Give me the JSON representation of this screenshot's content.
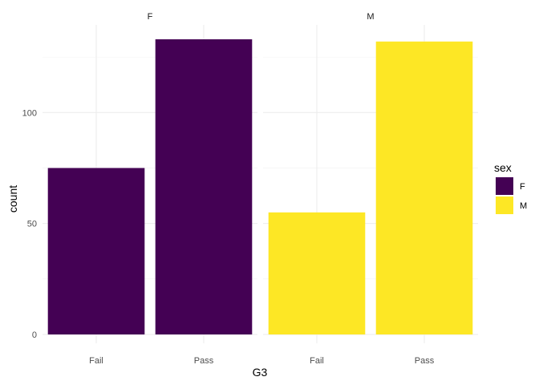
{
  "chart_data": {
    "type": "bar",
    "facet_by": "sex",
    "facets": [
      {
        "label": "F",
        "categories": [
          "Fail",
          "Pass"
        ],
        "values": [
          75,
          133
        ],
        "color": "#440154"
      },
      {
        "label": "M",
        "categories": [
          "Fail",
          "Pass"
        ],
        "values": [
          55,
          132
        ],
        "color": "#FDE725"
      }
    ],
    "xlabel": "G3",
    "ylabel": "count",
    "ylim": [
      0,
      133
    ],
    "yticks": [
      0,
      50,
      100
    ],
    "grid": true,
    "legend": {
      "title": "sex",
      "placement": "right",
      "entries": [
        {
          "label": "F",
          "color": "#440154"
        },
        {
          "label": "M",
          "color": "#FDE725"
        }
      ]
    }
  }
}
